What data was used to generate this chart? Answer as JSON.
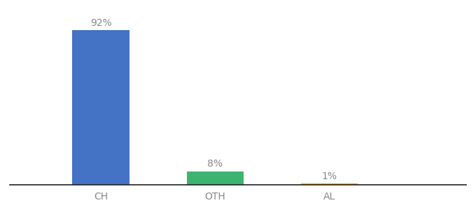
{
  "categories": [
    "CH",
    "OTH",
    "AL"
  ],
  "values": [
    92,
    8,
    1
  ],
  "bar_colors": [
    "#4472C4",
    "#3CB371",
    "#FFA500"
  ],
  "labels": [
    "92%",
    "8%",
    "1%"
  ],
  "ylim": [
    0,
    100
  ],
  "background_color": "#ffffff",
  "label_fontsize": 10,
  "tick_fontsize": 10,
  "bar_width": 0.5,
  "x_positions": [
    1,
    2,
    3
  ],
  "xlim": [
    0.2,
    4.2
  ]
}
